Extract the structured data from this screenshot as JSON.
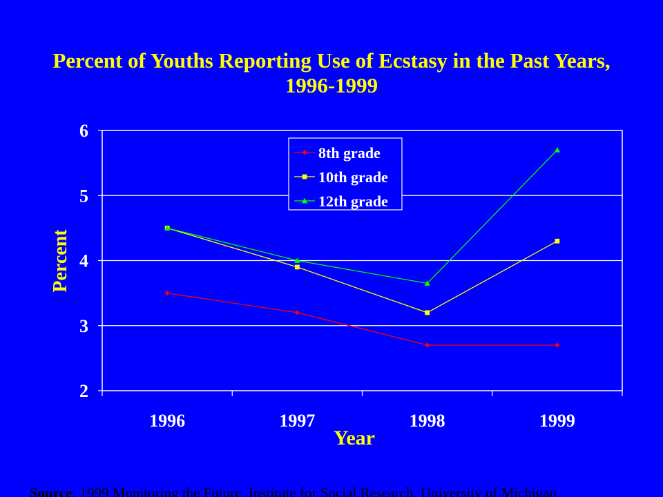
{
  "slide": {
    "background_color": "#0000FF",
    "title_color": "#FFFF00",
    "source_label": "Source",
    "source_text": ": 1999 Monitoring the Future, Institute for Social Research, University of Michigan"
  },
  "chart_data": {
    "type": "line",
    "title": "Percent of Youths Reporting Use of Ecstasy in the Past Years, 1996-1999",
    "xlabel": "Year",
    "ylabel": "Percent",
    "categories": [
      "1996",
      "1997",
      "1998",
      "1999"
    ],
    "ylim": [
      2,
      6
    ],
    "yticks": [
      2,
      3,
      4,
      5,
      6
    ],
    "grid": true,
    "legend_position": "top-center",
    "plot_background": "#0000FF",
    "axis_color": "#FFFFFF",
    "series": [
      {
        "name": "8th grade",
        "values": [
          3.5,
          3.2,
          2.7,
          2.7
        ],
        "color": "#FF0000",
        "marker": "diamond"
      },
      {
        "name": "10th grade",
        "values": [
          4.5,
          3.9,
          3.2,
          4.3
        ],
        "color": "#FFFF00",
        "marker": "square"
      },
      {
        "name": "12th grade",
        "values": [
          4.5,
          4.0,
          3.65,
          5.7
        ],
        "color": "#00FF00",
        "marker": "triangle"
      }
    ]
  }
}
